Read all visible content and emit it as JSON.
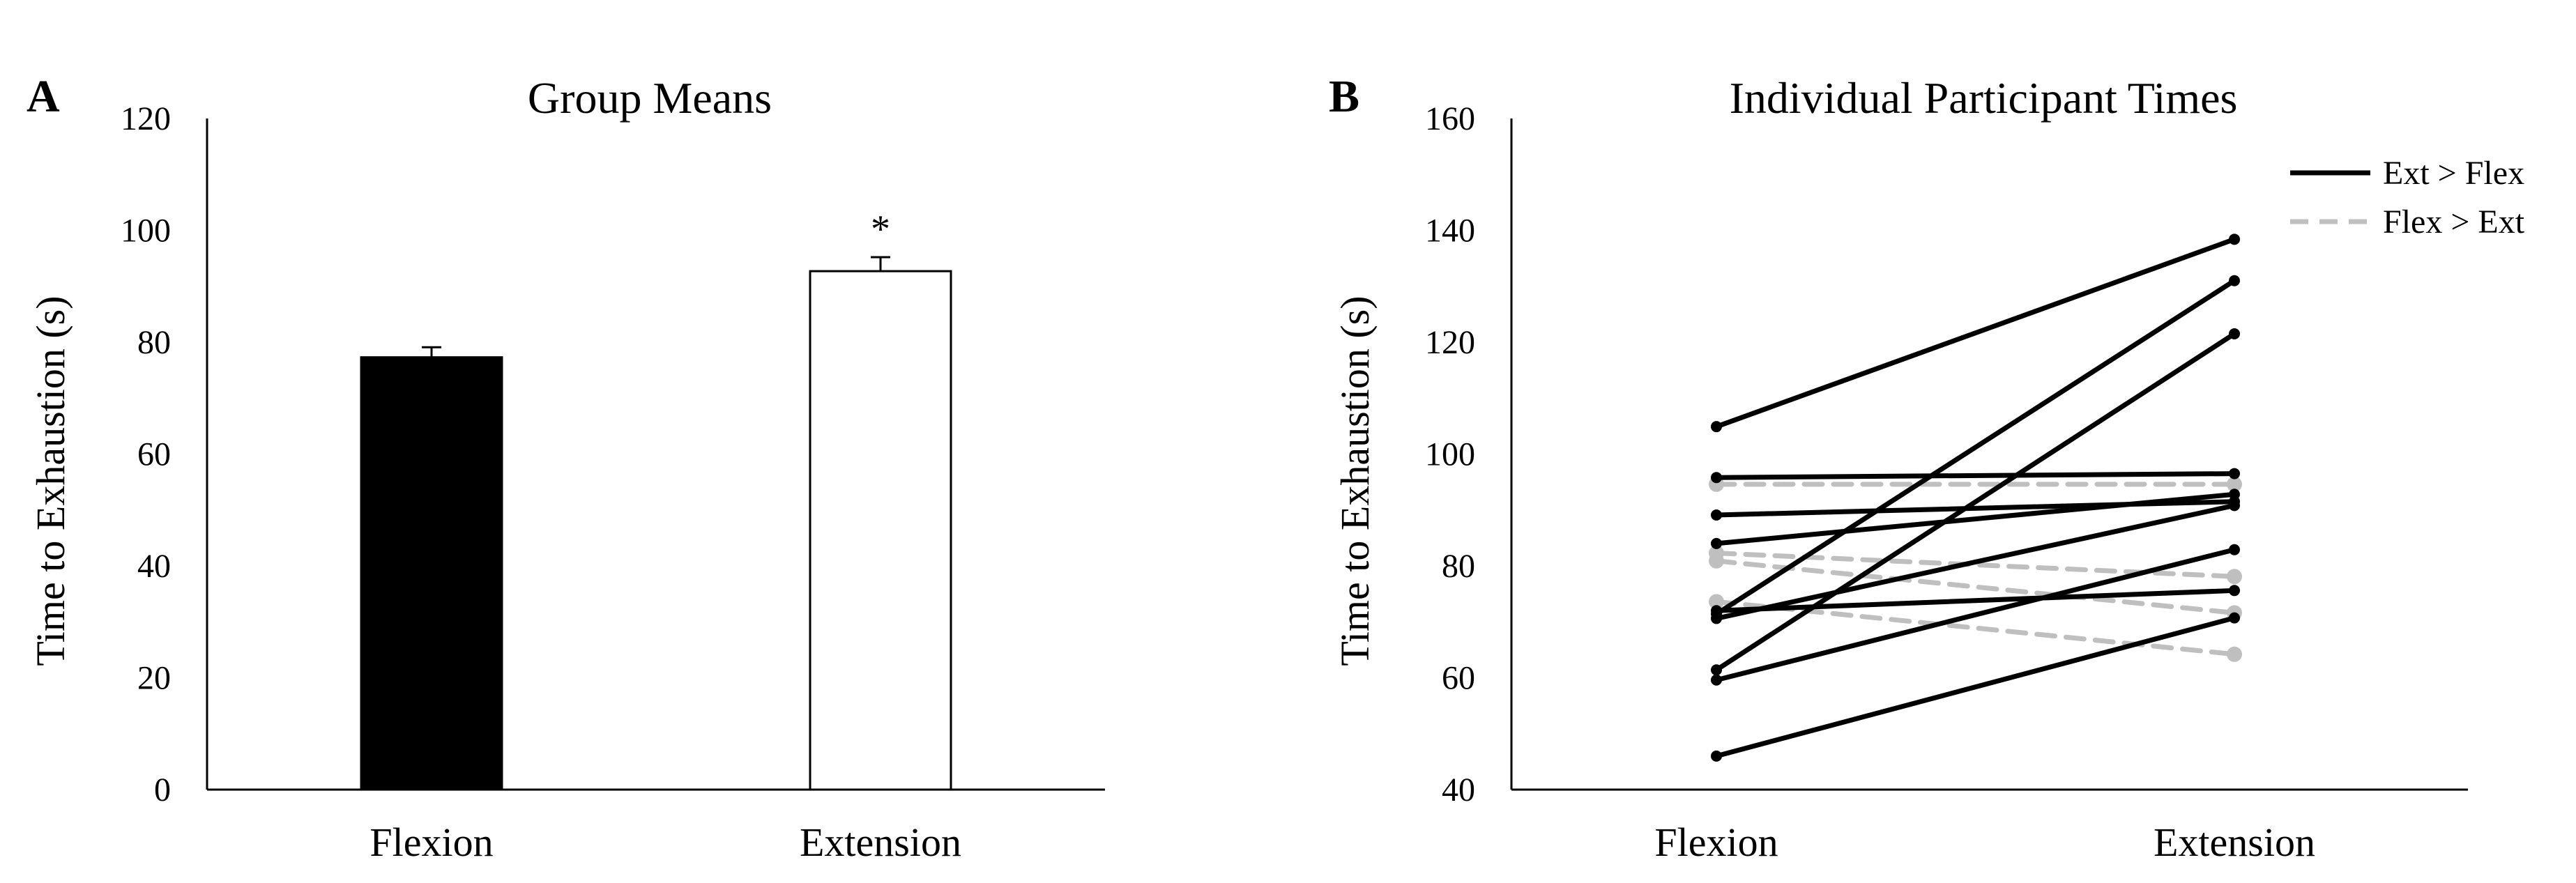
{
  "panels": [
    {
      "letter": "A",
      "chart_data": {
        "type": "bar",
        "title": "Group Means",
        "ylabel": "Time to Exhaustion (s)",
        "xlabel": "",
        "categories": [
          "Flexion",
          "Extension"
        ],
        "values": [
          77.3,
          92.7
        ],
        "error": [
          1.8,
          2.5
        ],
        "colors": [
          "#000000",
          "#ffffff"
        ],
        "annotations": [
          "",
          "*"
        ],
        "ylim": [
          0,
          120
        ],
        "yticks": [
          "0",
          "20",
          "40",
          "60",
          "80",
          "100",
          "120"
        ],
        "grid": false
      }
    },
    {
      "letter": "B",
      "chart_data": {
        "type": "line",
        "title": "Individual Participant Times",
        "ylabel": "Time to Exhaustion (s)",
        "xlabel": "",
        "categories": [
          "Flexion",
          "Extension"
        ],
        "ylim": [
          40,
          160
        ],
        "yticks": [
          "40",
          "60",
          "80",
          "100",
          "120",
          "140",
          "160"
        ],
        "grid": false,
        "legend_position": "top-right",
        "legend": [
          {
            "label": "Ext > Flex",
            "color": "#000000",
            "dash": false
          },
          {
            "label": "Flex > Ext",
            "color": "#bfbfbf",
            "dash": true
          }
        ],
        "series": [
          {
            "group": 0,
            "values": [
              104.9,
              138.4
            ]
          },
          {
            "group": 0,
            "values": [
              95.8,
              96.5
            ]
          },
          {
            "group": 0,
            "values": [
              89.1,
              91.5
            ]
          },
          {
            "group": 0,
            "values": [
              84.0,
              92.8
            ]
          },
          {
            "group": 0,
            "values": [
              71.4,
              131.0
            ]
          },
          {
            "group": 0,
            "values": [
              70.6,
              90.8
            ]
          },
          {
            "group": 0,
            "values": [
              61.4,
              121.5
            ]
          },
          {
            "group": 0,
            "values": [
              59.6,
              82.9
            ]
          },
          {
            "group": 0,
            "values": [
              46.0,
              70.7
            ]
          },
          {
            "group": 0,
            "values": [
              72.0,
              75.6
            ]
          },
          {
            "group": 1,
            "values": [
              94.6,
              94.6
            ]
          },
          {
            "group": 1,
            "values": [
              82.3,
              78.1
            ]
          },
          {
            "group": 1,
            "values": [
              80.9,
              71.6
            ]
          },
          {
            "group": 1,
            "values": [
              73.6,
              64.2
            ]
          }
        ]
      }
    }
  ]
}
